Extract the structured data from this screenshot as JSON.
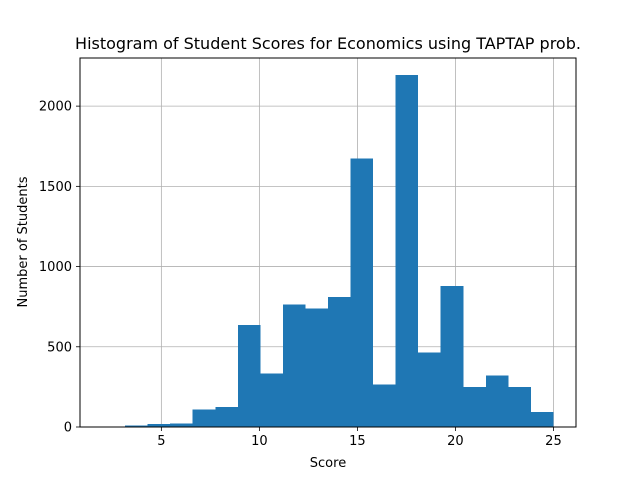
{
  "chart_data": {
    "type": "bar",
    "title": "Histogram of Student Scores for Economics using TAPTAP prob.",
    "xlabel": "Score",
    "ylabel": "Number of Students",
    "xlim": [
      0.85,
      26.15
    ],
    "ylim": [
      0,
      2300
    ],
    "grid": true,
    "bar_color": "#1f77b4",
    "x_ticks": [
      5,
      10,
      15,
      20,
      25
    ],
    "y_ticks": [
      0,
      500,
      1000,
      1500,
      2000
    ],
    "bins": [
      {
        "x0": 2.0,
        "x1": 3.15,
        "value": 3
      },
      {
        "x0": 3.15,
        "x1": 4.3,
        "value": 10
      },
      {
        "x0": 4.3,
        "x1": 5.45,
        "value": 20
      },
      {
        "x0": 5.45,
        "x1": 6.6,
        "value": 22
      },
      {
        "x0": 6.6,
        "x1": 7.75,
        "value": 110
      },
      {
        "x0": 7.75,
        "x1": 8.9,
        "value": 125
      },
      {
        "x0": 8.9,
        "x1": 10.05,
        "value": 635
      },
      {
        "x0": 10.05,
        "x1": 11.2,
        "value": 335
      },
      {
        "x0": 11.2,
        "x1": 12.35,
        "value": 765
      },
      {
        "x0": 12.35,
        "x1": 13.5,
        "value": 740
      },
      {
        "x0": 13.5,
        "x1": 14.65,
        "value": 810
      },
      {
        "x0": 14.65,
        "x1": 15.8,
        "value": 1675
      },
      {
        "x0": 15.8,
        "x1": 16.95,
        "value": 265
      },
      {
        "x0": 16.95,
        "x1": 18.1,
        "value": 2195
      },
      {
        "x0": 18.1,
        "x1": 19.25,
        "value": 465
      },
      {
        "x0": 19.25,
        "x1": 20.4,
        "value": 880
      },
      {
        "x0": 20.4,
        "x1": 21.55,
        "value": 250
      },
      {
        "x0": 21.55,
        "x1": 22.7,
        "value": 320
      },
      {
        "x0": 22.7,
        "x1": 23.85,
        "value": 250
      },
      {
        "x0": 23.85,
        "x1": 25.0,
        "value": 95
      }
    ]
  }
}
